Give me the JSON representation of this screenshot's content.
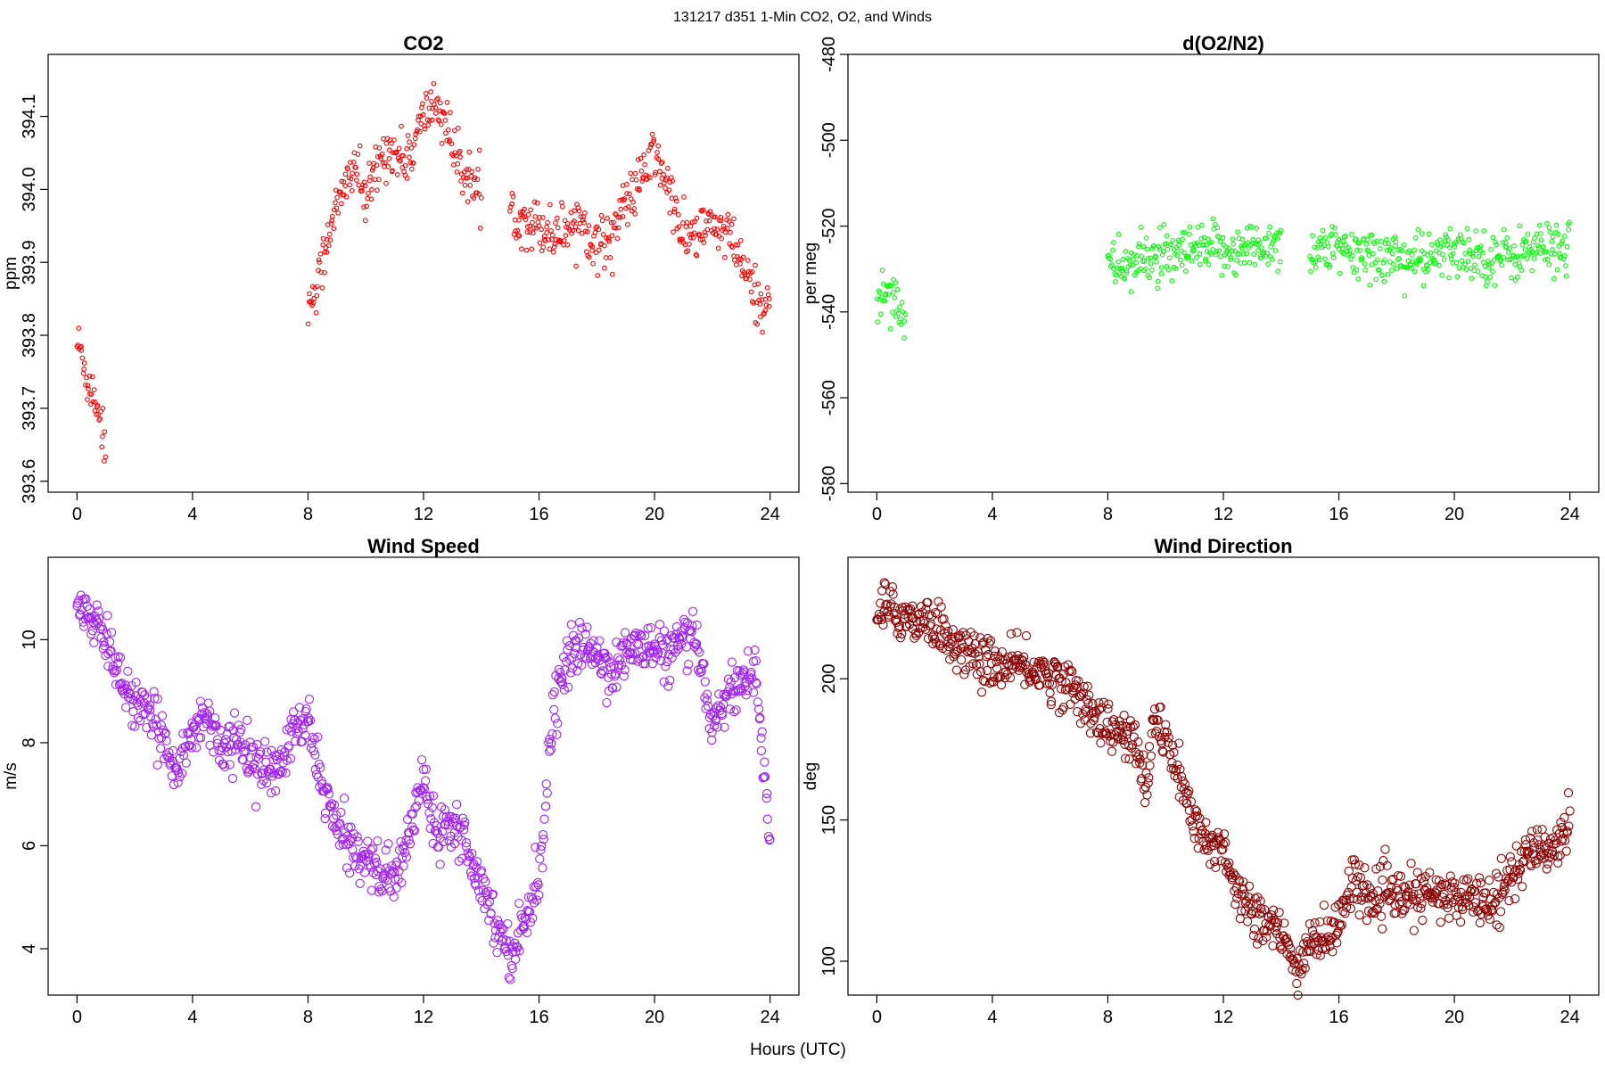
{
  "header": {
    "supertitle": "131217   d351   1-Min CO2, O2, and Winds",
    "xlabel": "Hours (UTC)"
  },
  "chart_data": [
    {
      "type": "scatter",
      "title": "CO2",
      "xlabel": "",
      "ylabel": "ppm",
      "color": "#ff0000",
      "marker_size": "small",
      "xlim": [
        -1,
        25
      ],
      "ylim": [
        393.585,
        394.185
      ],
      "xticks": [
        0,
        4,
        8,
        12,
        16,
        20,
        24
      ],
      "yticks": [
        393.6,
        393.7,
        393.8,
        393.9,
        394.0,
        394.1
      ],
      "ytick_labels": [
        "393.6",
        "393.7",
        "393.8",
        "393.9",
        "394.0",
        "394.1"
      ],
      "segments": [
        {
          "x": [
            0.0,
            0.2,
            0.4,
            0.6,
            0.8,
            1.0
          ],
          "y": [
            393.79,
            393.77,
            393.73,
            393.72,
            393.69,
            393.64
          ]
        },
        {
          "x": [
            8.0,
            8.4,
            8.8,
            9.2,
            9.6,
            10.0,
            10.4,
            10.8,
            11.2,
            11.6,
            12.0,
            12.4,
            12.8,
            13.2,
            13.6,
            14.0
          ],
          "y": [
            393.84,
            393.88,
            393.96,
            393.99,
            394.04,
            393.98,
            394.03,
            394.06,
            394.04,
            394.05,
            394.1,
            394.12,
            394.09,
            394.03,
            394.02,
            393.98
          ]
        },
        {
          "x": [
            15.0,
            15.5,
            16.0,
            16.5,
            17.0,
            17.5,
            18.0,
            18.5,
            19.0,
            19.5,
            20.0,
            20.5,
            21.0,
            21.5,
            22.0,
            22.5,
            23.0,
            23.5,
            24.0
          ],
          "y": [
            393.97,
            393.96,
            393.95,
            393.94,
            393.95,
            393.96,
            393.92,
            393.94,
            393.98,
            394.01,
            394.05,
            394.0,
            393.93,
            393.94,
            393.95,
            393.94,
            393.9,
            393.85,
            393.84
          ]
        }
      ]
    },
    {
      "type": "scatter",
      "title": "d(O2/N2)",
      "xlabel": "",
      "ylabel": "per meg",
      "color": "#00ff00",
      "marker_size": "small",
      "xlim": [
        -1,
        25
      ],
      "ylim": [
        -582,
        -480
      ],
      "xticks": [
        0,
        4,
        8,
        12,
        16,
        20,
        24
      ],
      "yticks": [
        -580,
        -560,
        -540,
        -520,
        -500,
        -480
      ],
      "ytick_labels": [
        "-580",
        "-560",
        "-540",
        "-520",
        "-500",
        "-480"
      ],
      "segments": [
        {
          "x": [
            0.0,
            0.3,
            0.6,
            0.9,
            1.0
          ],
          "y": [
            -539,
            -534,
            -536,
            -540,
            -542
          ]
        },
        {
          "x": [
            8.0,
            8.5,
            9.0,
            9.5,
            10.0,
            10.5,
            11.0,
            11.5,
            12.0,
            12.5,
            13.0,
            13.5,
            14.0
          ],
          "y": [
            -530,
            -529,
            -529,
            -527,
            -528,
            -527,
            -526,
            -526,
            -525,
            -526,
            -525,
            -524,
            -524
          ]
        },
        {
          "x": [
            15.0,
            15.5,
            16.0,
            16.5,
            17.0,
            17.5,
            18.0,
            18.5,
            19.0,
            19.5,
            20.0,
            20.5,
            21.0,
            21.5,
            22.0,
            22.5,
            23.0,
            23.5,
            24.0
          ],
          "y": [
            -526,
            -525,
            -526,
            -527,
            -526,
            -527,
            -527,
            -528,
            -528,
            -527,
            -526,
            -526,
            -527,
            -527,
            -527,
            -526,
            -525,
            -525,
            -524
          ]
        }
      ]
    },
    {
      "type": "scatter",
      "title": "Wind Speed",
      "xlabel": "",
      "ylabel": "m/s",
      "color": "#a020f0",
      "marker_size": "large",
      "xlim": [
        -1,
        25
      ],
      "ylim": [
        3.1,
        11.6
      ],
      "xticks": [
        0,
        4,
        8,
        12,
        16,
        20,
        24
      ],
      "yticks": [
        4,
        6,
        8,
        10
      ],
      "ytick_labels": [
        "4",
        "6",
        "8",
        "10"
      ],
      "segments": [
        {
          "x": [
            0.0,
            0.5,
            1.0,
            1.5,
            2.0,
            2.5,
            3.0,
            3.5,
            4.0,
            4.5,
            5.0,
            5.5,
            6.0,
            6.5,
            7.0,
            7.5,
            8.0,
            8.5,
            9.0,
            9.5,
            10.0,
            10.5,
            11.0,
            11.5,
            12.0,
            12.5,
            13.0,
            13.5,
            14.0,
            14.5,
            15.0,
            15.5,
            16.0,
            16.5,
            17.0,
            17.5,
            18.0,
            18.5,
            19.0,
            19.5,
            20.0,
            20.5,
            21.0,
            21.5,
            22.0,
            22.5,
            23.0,
            23.5,
            24.0
          ],
          "y": [
            10.8,
            10.3,
            10.0,
            9.3,
            8.7,
            8.5,
            8.1,
            7.5,
            8.2,
            8.6,
            7.9,
            8.0,
            7.8,
            7.4,
            7.5,
            8.2,
            8.4,
            7.2,
            6.3,
            6.0,
            5.8,
            5.5,
            5.3,
            6.2,
            7.4,
            6.2,
            6.6,
            6.0,
            5.3,
            4.5,
            3.9,
            4.5,
            5.4,
            8.7,
            9.6,
            9.9,
            9.7,
            9.4,
            9.7,
            9.9,
            9.8,
            9.7,
            10.0,
            9.8,
            8.4,
            8.9,
            9.2,
            9.4,
            6.0
          ]
        }
      ]
    },
    {
      "type": "scatter",
      "title": "Wind Direction",
      "xlabel": "",
      "ylabel": "deg",
      "color": "#8b0000",
      "marker_size": "large",
      "xlim": [
        -1,
        25
      ],
      "ylim": [
        88,
        243
      ],
      "xticks": [
        0,
        4,
        8,
        12,
        16,
        20,
        24
      ],
      "yticks": [
        100,
        150,
        200
      ],
      "ytick_labels": [
        "100",
        "150",
        "200"
      ],
      "segments": [
        {
          "x": [
            0.0,
            0.5,
            1.0,
            1.5,
            2.0,
            2.5,
            3.0,
            3.5,
            4.0,
            4.5,
            5.0,
            5.5,
            6.0,
            6.5,
            7.0,
            7.5,
            8.0,
            8.5,
            9.0,
            9.3,
            9.6,
            10.0,
            10.5,
            11.0,
            11.5,
            12.0,
            12.5,
            13.0,
            13.5,
            14.0,
            14.5,
            15.0,
            15.5,
            16.0,
            16.5,
            17.0,
            17.5,
            18.0,
            18.5,
            19.0,
            19.5,
            20.0,
            20.5,
            21.0,
            21.5,
            22.0,
            22.5,
            23.0,
            23.5,
            24.0
          ],
          "y": [
            225,
            224,
            222,
            221,
            220,
            214,
            210,
            207,
            206,
            203,
            205,
            203,
            201,
            198,
            194,
            189,
            182,
            180,
            177,
            157,
            187,
            178,
            165,
            147,
            141,
            142,
            123,
            120,
            113,
            109,
            96,
            108,
            108,
            112,
            131,
            122,
            123,
            123,
            122,
            124,
            123,
            122,
            123,
            122,
            124,
            130,
            137,
            141,
            140,
            152
          ]
        }
      ]
    }
  ]
}
